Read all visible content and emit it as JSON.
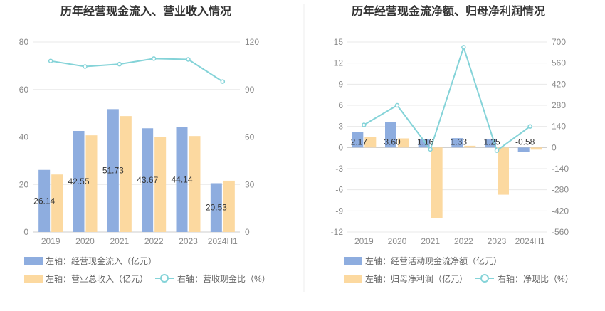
{
  "colors": {
    "bar_primary": "#8eaddf",
    "bar_secondary": "#fcd9a0",
    "line": "#84d3d8",
    "grid": "#e8e8e8",
    "axis": "#cccccc",
    "divider": "#eeeeee"
  },
  "chart_data": [
    {
      "type": "bar",
      "title": "历年经营现金流入、营业收入情况",
      "categories": [
        "2019",
        "2020",
        "2021",
        "2022",
        "2023",
        "2024H1"
      ],
      "ylim_left": [
        0,
        80
      ],
      "yticks_left": [
        "0",
        "20",
        "40",
        "60",
        "80"
      ],
      "ylim_right": [
        0,
        120
      ],
      "yticks_right": [
        "0",
        "30",
        "60",
        "90",
        "120"
      ],
      "grid": true,
      "legend_position": "bottom-left",
      "series": [
        {
          "name": "左轴：经营现金流入（亿元）",
          "axis": "left",
          "kind": "bar",
          "color": "#8eaddf",
          "values": [
            26.14,
            42.55,
            51.73,
            43.67,
            44.14,
            20.53
          ],
          "labels": [
            "26.14",
            "42.55",
            "51.73",
            "43.67",
            "44.14",
            "20.53"
          ]
        },
        {
          "name": "左轴：营业总收入（亿元）",
          "axis": "left",
          "kind": "bar",
          "color": "#fcd9a0",
          "values": [
            24.2,
            40.7,
            48.8,
            39.9,
            40.4,
            21.6
          ]
        },
        {
          "name": "右轴：营收现金比（%）",
          "axis": "right",
          "kind": "line",
          "color": "#84d3d8",
          "values": [
            108.0,
            104.5,
            106.0,
            109.5,
            109.0,
            95.0
          ]
        }
      ]
    },
    {
      "type": "bar",
      "title": "历年经营现金流净额、归母净利润情况",
      "categories": [
        "2019",
        "2020",
        "2021",
        "2022",
        "2023",
        "2024H1"
      ],
      "ylim_left": [
        -12,
        15
      ],
      "yticks_left": [
        "-12",
        "-9",
        "-6",
        "-3",
        "0",
        "3",
        "6",
        "9",
        "12",
        "15"
      ],
      "ylim_right": [
        -560,
        700
      ],
      "yticks_right": [
        "-560",
        "-420",
        "-280",
        "-140",
        "0",
        "140",
        "280",
        "420",
        "560",
        "700"
      ],
      "grid": true,
      "legend_position": "bottom-left",
      "series": [
        {
          "name": "左轴：经营活动现金流净额（亿元）",
          "axis": "left",
          "kind": "bar",
          "color": "#8eaddf",
          "values": [
            2.17,
            3.6,
            1.16,
            1.33,
            1.25,
            -0.58
          ],
          "labels": [
            "2.17",
            "3.60",
            "1.16",
            "1.33",
            "1.25",
            "-0.58"
          ]
        },
        {
          "name": "左轴：归母净利润（亿元）",
          "axis": "left",
          "kind": "bar",
          "color": "#fcd9a0",
          "values": [
            1.45,
            1.3,
            -10.0,
            0.25,
            -6.7,
            -0.3
          ]
        },
        {
          "name": "右轴：净现比（%）",
          "axis": "right",
          "kind": "line",
          "color": "#84d3d8",
          "values": [
            150,
            280,
            -12,
            665,
            -20,
            140
          ]
        }
      ]
    }
  ]
}
